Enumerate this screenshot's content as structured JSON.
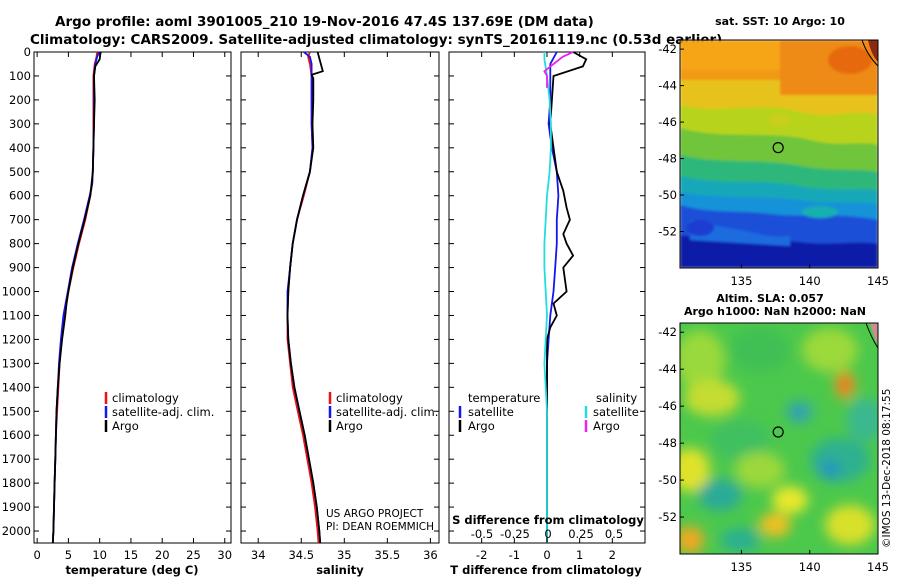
{
  "title_line1": "Argo profile: aoml 3901005_210 19-Nov-2016 47.4S 137.69E (DM data)",
  "title_line2": "Climatology: CARS2009. Satellite-adjusted climatology: synTS_20161119.nc (0.53d earlier)",
  "credit": [
    "US ARGO PROJECT",
    "PI: DEAN ROEMMICH"
  ],
  "stamp": "©IMOS 13-Dec-2018 08:17:55",
  "colors": {
    "climatology": "#ee1111",
    "satellite": "#1515ee",
    "argo": "#000000",
    "temp_diff": "#1515ee",
    "sal_diff": "#22dddd",
    "sal_argo": "#ee22ee"
  },
  "chart_data": [
    {
      "type": "line",
      "xlabel": "temperature (deg C)",
      "xlim": [
        -0.5,
        31
      ],
      "xticks": [
        0,
        5,
        10,
        15,
        20,
        25,
        30
      ],
      "ylim": [
        2050,
        0
      ],
      "yticks": [
        0,
        100,
        200,
        300,
        400,
        500,
        600,
        700,
        800,
        900,
        1000,
        1100,
        1200,
        1300,
        1400,
        1500,
        1600,
        1700,
        1800,
        1900,
        2000
      ],
      "ytick_labels": [
        "0",
        "100",
        "200",
        "300",
        "400",
        "500",
        "600",
        "700",
        "800",
        "900",
        "1000",
        "1100",
        "1200",
        "1300",
        "1400",
        "1500",
        "1600",
        "1700",
        "1800",
        "1900",
        "2000"
      ],
      "legend": [
        "climatology",
        "satellite-adj. clim.",
        "Argo"
      ],
      "series": [
        {
          "name": "climatology",
          "depth": [
            0,
            20,
            50,
            100,
            200,
            300,
            400,
            500,
            550,
            600,
            700,
            800,
            900,
            1000,
            1100,
            1200,
            1300,
            1400,
            1500,
            1600,
            1700,
            1800,
            1900,
            2000,
            2050
          ],
          "values": [
            9.6,
            9.5,
            9.2,
            9.0,
            9.0,
            9.0,
            9.0,
            8.9,
            8.8,
            8.5,
            7.7,
            6.7,
            5.8,
            5.0,
            4.4,
            3.9,
            3.6,
            3.4,
            3.2,
            3.0,
            2.9,
            2.8,
            2.7,
            2.6,
            2.5
          ]
        },
        {
          "name": "satellite-adj. clim.",
          "depth": [
            0,
            20,
            50,
            100,
            200,
            300,
            400,
            500,
            550,
            600,
            700,
            800,
            900,
            1000,
            1100,
            1200,
            1300,
            1400,
            1500,
            1600,
            1700,
            1800,
            1900,
            2000,
            2050
          ],
          "values": [
            9.9,
            9.6,
            9.3,
            9.1,
            9.1,
            9.1,
            9.0,
            8.9,
            8.8,
            8.4,
            7.5,
            6.5,
            5.6,
            4.9,
            4.2,
            3.8,
            3.5,
            3.3,
            3.1,
            3.0,
            2.9,
            2.8,
            2.7,
            2.6,
            2.5
          ]
        },
        {
          "name": "Argo",
          "depth": [
            0,
            10,
            30,
            60,
            100,
            200,
            300,
            400,
            500,
            600,
            700,
            800,
            900,
            1000,
            1050,
            1100,
            1200,
            1300,
            1400,
            1500,
            1600,
            1700,
            1800,
            1900,
            2000,
            2050
          ],
          "values": [
            10.2,
            10.1,
            10.0,
            9.3,
            9.1,
            9.2,
            9.1,
            9.0,
            8.9,
            8.5,
            7.6,
            6.6,
            5.7,
            5.0,
            4.7,
            4.5,
            4.0,
            3.6,
            3.3,
            3.1,
            3.0,
            2.9,
            2.8,
            2.7,
            2.6,
            2.5
          ]
        }
      ]
    },
    {
      "type": "line",
      "xlabel": "salinity",
      "xlim": [
        33.8,
        36.1
      ],
      "xticks": [
        34,
        34.5,
        35,
        35.5,
        36
      ],
      "xtick_labels": [
        "34",
        "34.5",
        "35",
        "35.5",
        "36"
      ],
      "ylim": [
        2050,
        0
      ],
      "legend": [
        "climatology",
        "satellite-adj. clim.",
        "Argo"
      ],
      "series": [
        {
          "name": "climatology",
          "depth": [
            0,
            20,
            50,
            100,
            200,
            300,
            400,
            500,
            600,
            700,
            800,
            900,
            1000,
            1100,
            1200,
            1300,
            1400,
            1500,
            1600,
            1700,
            1800,
            1900,
            2000,
            2050
          ],
          "values": [
            34.6,
            34.58,
            34.6,
            34.62,
            34.62,
            34.62,
            34.63,
            34.6,
            34.53,
            34.45,
            34.4,
            34.37,
            34.35,
            34.34,
            34.34,
            34.37,
            34.4,
            34.46,
            34.52,
            34.57,
            34.62,
            34.66,
            34.69,
            34.7
          ]
        },
        {
          "name": "satellite-adj. clim.",
          "depth": [
            0,
            20,
            50,
            100,
            200,
            300,
            400,
            500,
            600,
            700,
            800,
            900,
            1000,
            1100,
            1200,
            1300,
            1400,
            1500,
            1600,
            1700,
            1800,
            1900,
            2000,
            2050
          ],
          "values": [
            34.53,
            34.6,
            34.62,
            34.62,
            34.62,
            34.62,
            34.63,
            34.6,
            34.52,
            34.45,
            34.4,
            34.37,
            34.34,
            34.34,
            34.35,
            34.38,
            34.42,
            34.48,
            34.54,
            34.59,
            34.64,
            34.68,
            34.71,
            34.72
          ]
        },
        {
          "name": "Argo",
          "depth": [
            0,
            40,
            80,
            95,
            110,
            200,
            300,
            400,
            500,
            600,
            700,
            800,
            900,
            1000,
            1100,
            1200,
            1300,
            1400,
            1500,
            1600,
            1700,
            1800,
            1900,
            2000,
            2050
          ],
          "values": [
            34.69,
            34.72,
            34.75,
            34.62,
            34.64,
            34.64,
            34.63,
            34.64,
            34.6,
            34.52,
            34.45,
            34.4,
            34.37,
            34.35,
            34.34,
            34.35,
            34.38,
            34.42,
            34.48,
            34.54,
            34.59,
            34.64,
            34.68,
            34.71,
            34.72
          ]
        }
      ]
    },
    {
      "type": "line",
      "xlabel": "T difference from climatology",
      "xlim": [
        -3,
        3
      ],
      "xticks": [
        -2,
        -1,
        0,
        1,
        2
      ],
      "top_axis_label": "S difference from climatology",
      "top_ticks": [
        "-0.5",
        "-0.25",
        "0",
        "0.25",
        "0.5"
      ],
      "ylim": [
        2050,
        0
      ],
      "legend_left_title": "temperature",
      "legend_right_title": "salinity",
      "legend": [
        "satellite",
        "Argo",
        "satellite",
        "Argo"
      ],
      "series": [
        {
          "name": "temperature satellite",
          "depth": [
            0,
            50,
            100,
            200,
            300,
            400,
            500,
            600,
            700,
            800,
            900,
            1000,
            1100,
            1200,
            1300,
            1400,
            1500,
            1600,
            1700,
            1800,
            1900,
            2000,
            2050
          ],
          "values": [
            0.3,
            0.1,
            0.1,
            0.1,
            0.05,
            0.15,
            0.3,
            0.35,
            0.3,
            0.3,
            0.25,
            0.2,
            0.1,
            0.05,
            0.0,
            0.0,
            0.0,
            0.0,
            0.0,
            0.0,
            0.0,
            0.0,
            0.0
          ]
        },
        {
          "name": "temperature Argo",
          "depth": [
            0,
            30,
            60,
            100,
            200,
            300,
            400,
            500,
            580,
            650,
            700,
            760,
            800,
            850,
            900,
            1000,
            1050,
            1100,
            1150,
            1200,
            1300,
            1400,
            1500,
            1600,
            1700,
            1800,
            1900,
            2000,
            2050
          ],
          "values": [
            0.8,
            1.2,
            1.1,
            0.2,
            0.15,
            0.1,
            0.2,
            0.3,
            0.5,
            0.6,
            0.7,
            0.5,
            0.6,
            0.8,
            0.5,
            0.6,
            0.2,
            0.3,
            0.1,
            0.0,
            0.0,
            0.0,
            0.0,
            0.0,
            0.0,
            0.0,
            0.0,
            0.0,
            0.0
          ]
        },
        {
          "name": "salinity satellite",
          "depth": [
            0,
            30,
            100,
            200,
            300,
            400,
            500,
            600,
            700,
            800,
            900,
            1000,
            1100,
            1200,
            1300,
            1400,
            1500,
            1600,
            1700,
            1800,
            1900,
            2000,
            2050
          ],
          "values": [
            -0.02,
            -0.02,
            0.0,
            0.02,
            0.03,
            0.03,
            0.02,
            0.0,
            -0.01,
            -0.02,
            -0.02,
            -0.01,
            0.0,
            -0.01,
            -0.02,
            -0.01,
            0.0,
            0.0,
            0.0,
            0.0,
            0.0,
            0.0,
            0.0
          ]
        },
        {
          "name": "salinity Argo",
          "depth": [
            0,
            20,
            50,
            80,
            100,
            150
          ],
          "values": [
            0.2,
            0.12,
            0.05,
            -0.02,
            0.0,
            0.0
          ]
        }
      ]
    },
    {
      "type": "heatmap",
      "title": "sat. SST: 10 Argo: 10",
      "xlim": [
        130.5,
        145
      ],
      "xticks": [
        135,
        140,
        145
      ],
      "ylim": [
        -54,
        -41.5
      ],
      "yticks": [
        -42,
        -44,
        -46,
        -48,
        -50,
        -52
      ],
      "marker": {
        "lon": 137.69,
        "lat": -47.4
      }
    },
    {
      "type": "heatmap",
      "title_line1": "Altim. SLA: 0.057",
      "title_line2": "Argo h1000: NaN h2000: NaN",
      "xlim": [
        130.5,
        145
      ],
      "xticks": [
        135,
        140,
        145
      ],
      "ylim": [
        -54,
        -41.5
      ],
      "yticks": [
        -42,
        -44,
        -46,
        -48,
        -50,
        -52
      ],
      "marker": {
        "lon": 137.69,
        "lat": -47.4
      }
    }
  ]
}
